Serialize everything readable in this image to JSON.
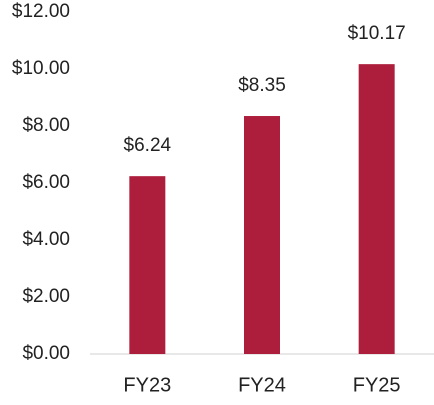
{
  "chart_data": {
    "type": "bar",
    "categories": [
      "FY23",
      "FY24",
      "FY25"
    ],
    "values": [
      6.24,
      8.35,
      10.17
    ],
    "value_labels": [
      "$6.24",
      "$8.35",
      "$10.17"
    ],
    "color": "#ad1e3c",
    "ylim": [
      0,
      12
    ],
    "yticks": [
      {
        "value": 0,
        "label": "$0.00"
      },
      {
        "value": 2,
        "label": "$2.00"
      },
      {
        "value": 4,
        "label": "$4.00"
      },
      {
        "value": 6,
        "label": "$6.00"
      },
      {
        "value": 8,
        "label": "$8.00"
      },
      {
        "value": 10,
        "label": "$10.00"
      },
      {
        "value": 12,
        "label": "$12.00"
      }
    ],
    "grid": false
  }
}
